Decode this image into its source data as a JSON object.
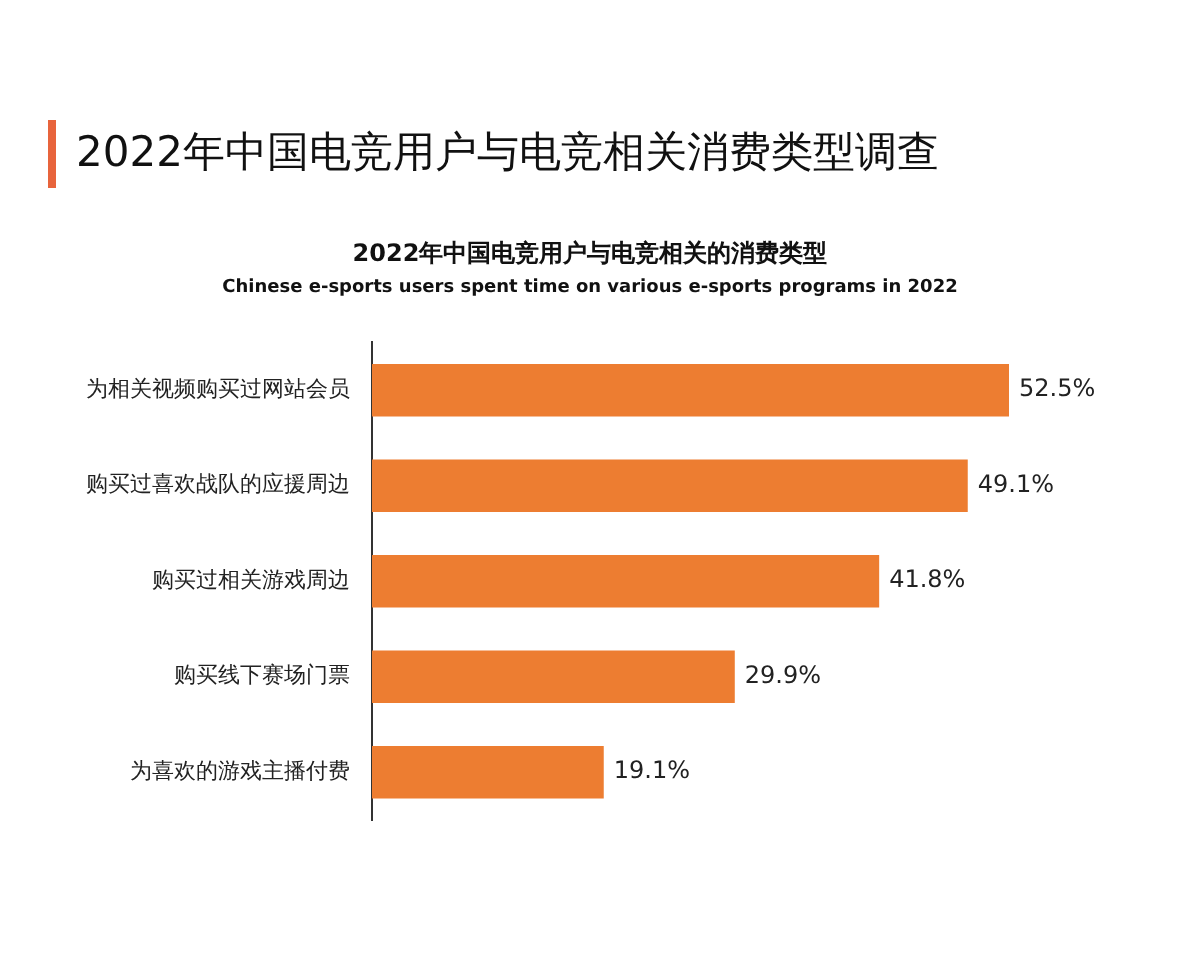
{
  "chart_data": {
    "type": "bar",
    "orientation": "horizontal",
    "title": "2022年中国电竞用户与电竞相关消费类型调查",
    "subtitle": "2022年中国电竞用户与电竞相关的消费类型",
    "annotations": [
      "Chinese e-sports users spent time on various e-sports programs in 2022"
    ],
    "categories": [
      "为相关视频购买过网站会员",
      "购买过喜欢战队的应援周边",
      "购买过相关游戏周边",
      "购买线下赛场门票",
      "为喜欢的游戏主播付费"
    ],
    "values": [
      52.5,
      49.1,
      41.8,
      29.9,
      19.1
    ],
    "value_labels": [
      "52.5%",
      "49.1%",
      "41.8%",
      "29.9%",
      "19.1%"
    ],
    "color": "#ed7d31",
    "tick_labels": "y"
  }
}
